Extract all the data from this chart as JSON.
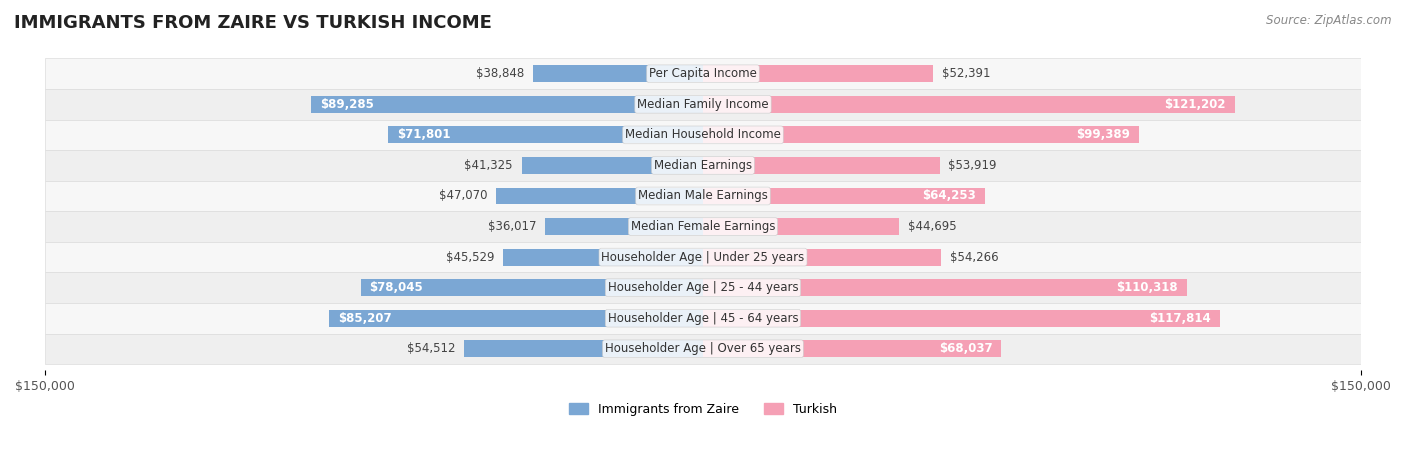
{
  "title": "IMMIGRANTS FROM ZAIRE VS TURKISH INCOME",
  "source": "Source: ZipAtlas.com",
  "categories": [
    "Per Capita Income",
    "Median Family Income",
    "Median Household Income",
    "Median Earnings",
    "Median Male Earnings",
    "Median Female Earnings",
    "Householder Age | Under 25 years",
    "Householder Age | 25 - 44 years",
    "Householder Age | 45 - 64 years",
    "Householder Age | Over 65 years"
  ],
  "zaire_values": [
    38848,
    89285,
    71801,
    41325,
    47070,
    36017,
    45529,
    78045,
    85207,
    54512
  ],
  "turkish_values": [
    52391,
    121202,
    99389,
    53919,
    64253,
    44695,
    54266,
    110318,
    117814,
    68037
  ],
  "zaire_color": "#7BA7D4",
  "turkish_color": "#F5A0B5",
  "zaire_label": "Immigrants from Zaire",
  "turkish_label": "Turkish",
  "bar_height": 0.55,
  "xlim": 150000,
  "bg_color": "#f5f5f5",
  "row_bg_even": "#ffffff",
  "row_bg_odd": "#f0f0f0",
  "axis_label_color": "#555555",
  "value_fontsize": 8.5,
  "category_fontsize": 8.5,
  "title_fontsize": 13,
  "source_fontsize": 8.5,
  "legend_fontsize": 9
}
